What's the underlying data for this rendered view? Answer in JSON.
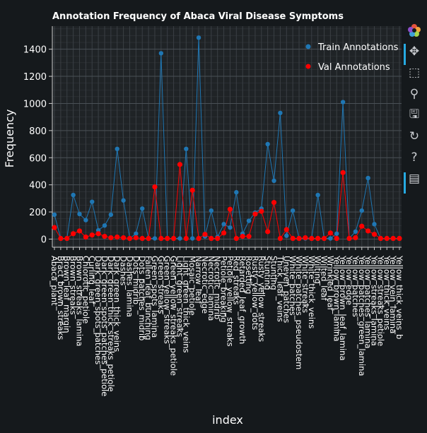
{
  "toolbar": {
    "items": [
      {
        "name": "bokeh-logo-icon",
        "glyph": ""
      },
      {
        "name": "pan-tool-icon",
        "glyph": "✥"
      },
      {
        "name": "box-zoom-tool-icon",
        "glyph": "⬚"
      },
      {
        "name": "wheel-zoom-tool-icon",
        "glyph": "⚲"
      },
      {
        "name": "save-tool-icon",
        "glyph": "🖫"
      },
      {
        "name": "reset-tool-icon",
        "glyph": "↻"
      },
      {
        "name": "help-tool-icon",
        "glyph": "?"
      },
      {
        "name": "hover-tool-icon",
        "glyph": "▤"
      }
    ]
  },
  "colors": {
    "background": "#15191c",
    "plot_background": "#1f2326",
    "grid": "#3a3f44",
    "train": "#1f77b4",
    "val": "#ff0000",
    "toolbar_active": "#26aae1"
  },
  "chart_data": {
    "type": "line",
    "title": "Annotation Frequency of Abaca Viral Disease Symptoms",
    "xlabel": "index",
    "ylabel": "Frequency",
    "ylim": [
      -60,
      1570
    ],
    "yticks": [
      0,
      200,
      400,
      600,
      800,
      1000,
      1200,
      1400
    ],
    "grid": true,
    "legend_position": "top-right",
    "categories": [
      "Abaca_plant",
      "Bract_brown_streaks",
      "Brown_leaf_margin",
      "Brown_streaks",
      "Brown_streaks_lamina",
      "Chlorotic_petiole",
      "Curling_leaf",
      "Dark_green_spots_patches",
      "Dark_green_spots_patches_petiole",
      "Dark_green_thick_streaks_petiole",
      "Dark_green_thick_veins",
      "Dashes",
      "Dashes_lamina",
      "Dots_midrib",
      "Dots_patches_midrib",
      "Fallen_leaf_bunching",
      "Green_spots_lamina",
      "Green_streaks",
      "Green_yellow_streaks",
      "Green_yellow_streaks_petiole",
      "Light_green_streaks",
      "Light_green_thick_veins",
      "Mosaic_petiole",
      "Narrow_leaf",
      "Necrotic_edge",
      "Necrotic_lamina",
      "Necrotic_midrib",
      "Petiole_breaking",
      "Petiole_yellow_streaks",
      "Red_streaks",
      "Retarded_leaf_growth",
      "Rosetting",
      "Rusty_yellow_dots",
      "Rusty_yellow_streaks",
      "Stunting_",
      "Stunting",
      "Thick_leaf_veins",
      "Uneven_patches",
      "White_patches",
      "White_patches_pseudostem",
      "White_streaks",
      "White_thick_veins",
      "Wilting",
      "Wilted_leaf",
      "Wrinkled_leaf",
      "Yellow_brown_lamina",
      "Yellow_brown_leaf_lamina",
      "Yellow_edge",
      "Yellow_patches",
      "Yellow_patches_green_lamina",
      "Yellow_patches_lamina",
      "Yellow_streaks_lamina",
      "Yellow_streaks_petiole",
      "Yellow_thick_veins",
      "Yellow_vein_lamina",
      "Yellow_thick_veins_b"
    ],
    "series": [
      {
        "name": "Train Annotations",
        "values": [
          180,
          5,
          5,
          325,
          185,
          140,
          275,
          65,
          100,
          180,
          665,
          285,
          5,
          40,
          225,
          5,
          5,
          1370,
          5,
          5,
          5,
          665,
          5,
          1485,
          20,
          210,
          15,
          110,
          85,
          345,
          40,
          135,
          195,
          225,
          700,
          430,
          930,
          25,
          210,
          5,
          5,
          5,
          325,
          5,
          5,
          40,
          1010,
          5,
          55,
          210,
          450,
          110,
          5,
          5,
          5,
          5
        ]
      },
      {
        "name": "Val Annotations",
        "values": [
          85,
          5,
          5,
          40,
          60,
          15,
          30,
          40,
          20,
          10,
          15,
          10,
          5,
          10,
          5,
          5,
          385,
          5,
          5,
          5,
          550,
          5,
          360,
          5,
          35,
          5,
          5,
          45,
          220,
          5,
          20,
          20,
          185,
          205,
          55,
          270,
          5,
          70,
          5,
          5,
          10,
          5,
          5,
          5,
          45,
          5,
          490,
          5,
          10,
          95,
          60,
          35,
          5,
          5,
          5,
          5
        ]
      }
    ]
  }
}
